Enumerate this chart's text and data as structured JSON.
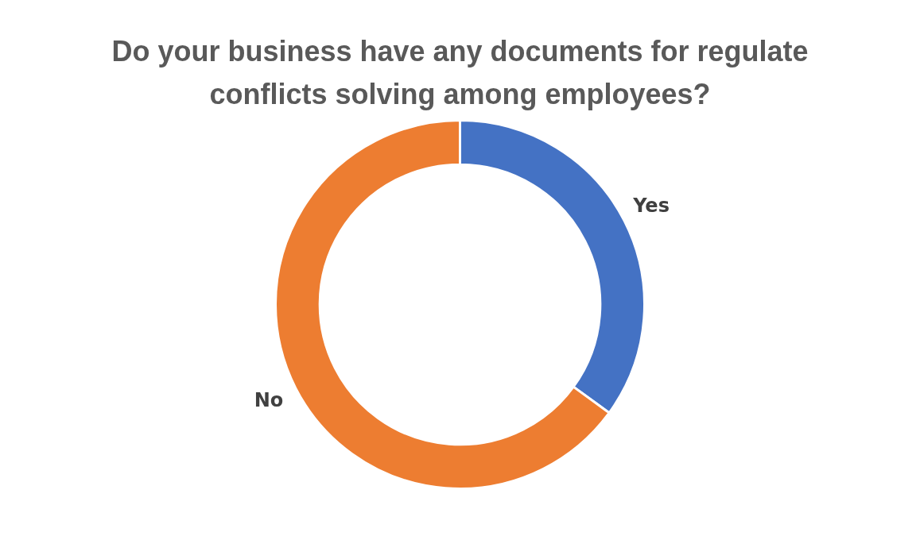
{
  "chart_data": {
    "type": "donut",
    "title": "Do your business have any documents for regulate conflicts solving among employees?",
    "categories": [
      "Yes",
      "No"
    ],
    "values": [
      35,
      65
    ],
    "colors": [
      "#4472c4",
      "#ed7d31"
    ],
    "legend": false
  }
}
